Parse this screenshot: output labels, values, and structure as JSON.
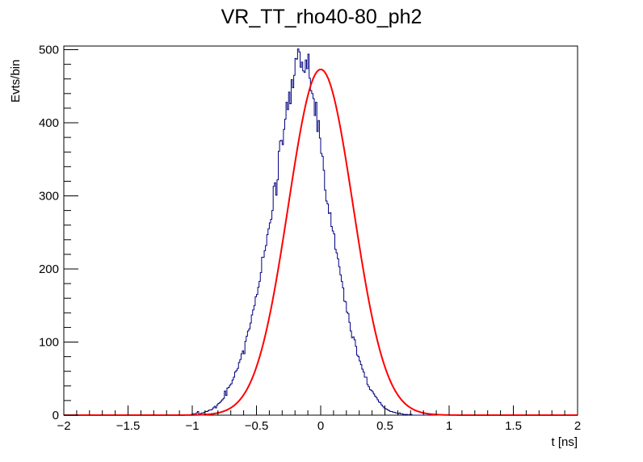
{
  "chart_data": {
    "type": "line",
    "title": "VR_TT_rho40-80_ph2",
    "xlabel": "t [ns]",
    "ylabel": "Evts/bin",
    "xlim": [
      -2,
      2
    ],
    "ylim": [
      0,
      505
    ],
    "x_ticks": [
      -2,
      -1.5,
      -1,
      -0.5,
      0,
      0.5,
      1,
      1.5,
      2
    ],
    "x_tick_labels": [
      "−2",
      "−1.5",
      "−1",
      "−0.5",
      "0",
      "0.5",
      "1",
      "1.5",
      "2"
    ],
    "y_ticks": [
      0,
      100,
      200,
      300,
      400,
      500
    ],
    "y_tick_labels": [
      "0",
      "100",
      "200",
      "300",
      "400",
      "500"
    ],
    "grid": false,
    "legend": "none",
    "series": [
      {
        "kind": "histogram",
        "color": "#000080",
        "bin_width": 0.01,
        "values": [
          0,
          0,
          0,
          0,
          0,
          0,
          0,
          0,
          0,
          0,
          0,
          0,
          0,
          0,
          0,
          0,
          0,
          0,
          0,
          0,
          0,
          0,
          0,
          0,
          0,
          0,
          0,
          0,
          0,
          0,
          0,
          0,
          0,
          0,
          0,
          0,
          0,
          0,
          0,
          0,
          0,
          0,
          0,
          0,
          0,
          0,
          0,
          0,
          0,
          0,
          0,
          0,
          0,
          0,
          0,
          0,
          0,
          0,
          0,
          0,
          0,
          0,
          0,
          0,
          0,
          0,
          0,
          0,
          0,
          0,
          0,
          0,
          0,
          0,
          0,
          0,
          0,
          0,
          0,
          0,
          0,
          0,
          0,
          0,
          0,
          0,
          0,
          0,
          0,
          0,
          0,
          0,
          0,
          0,
          0,
          0,
          0,
          0,
          0,
          1,
          2,
          2,
          1,
          3,
          5,
          2,
          2,
          3,
          3,
          4,
          5,
          5,
          6,
          7,
          7,
          8,
          10,
          12,
          10,
          14,
          16,
          17,
          19,
          21,
          23,
          33,
          27,
          37,
          38,
          41,
          43,
          48,
          52,
          59,
          61,
          64,
          72,
          76,
          84,
          88,
          84,
          101,
          108,
          115,
          118,
          126,
          137,
          144,
          150,
          162,
          165,
          175,
          183,
          195,
          216,
          216,
          225,
          232,
          247,
          255,
          263,
          268,
          280,
          313,
          318,
          301,
          322,
          361,
          375,
          376,
          370,
          391,
          405,
          428,
          418,
          442,
          426,
          459,
          448,
          465,
          488,
          487,
          501,
          497,
          476,
          483,
          471,
          469,
          486,
          474,
          494,
          461,
          444,
          440,
          433,
          410,
          428,
          388,
          403,
          379,
          358,
          354,
          335,
          308,
          293,
          289,
          276,
          277,
          258,
          252,
          248,
          227,
          222,
          214,
          203,
          192,
          183,
          174,
          156,
          155,
          141,
          139,
          127,
          115,
          106,
          107,
          103,
          94,
          82,
          80,
          74,
          69,
          63,
          59,
          52,
          52,
          42,
          39,
          35,
          34,
          32,
          29,
          26,
          24,
          21,
          18,
          17,
          14,
          12,
          10,
          9,
          8,
          7,
          6,
          5,
          5,
          4,
          4,
          3,
          3,
          2,
          3,
          2,
          2,
          1,
          1,
          1,
          1,
          0,
          1,
          1,
          0,
          0,
          0,
          0,
          0,
          0,
          0,
          0,
          0,
          0,
          0,
          0,
          0,
          0,
          0,
          0,
          0,
          0,
          0,
          0,
          0,
          0,
          0,
          0,
          0,
          0,
          0,
          0,
          0,
          0,
          0,
          0,
          0,
          0,
          0,
          0,
          0,
          0,
          0,
          0,
          0,
          0,
          0,
          0,
          0,
          0,
          0,
          0,
          0,
          0,
          0,
          0,
          0,
          0,
          0,
          0,
          0,
          0,
          0,
          0,
          0,
          0,
          0,
          0,
          0,
          0,
          0,
          0,
          0,
          0,
          0,
          0,
          0,
          0,
          0,
          0,
          0,
          0,
          0,
          0,
          0,
          0,
          0,
          0,
          0,
          0,
          0,
          0,
          0,
          0,
          0,
          0,
          0,
          0,
          0,
          0,
          0,
          0
        ]
      },
      {
        "kind": "fit",
        "color": "#ff0000",
        "function": "gaussian",
        "amplitude": 473,
        "mean": 0.0,
        "sigma": 0.252
      }
    ]
  }
}
